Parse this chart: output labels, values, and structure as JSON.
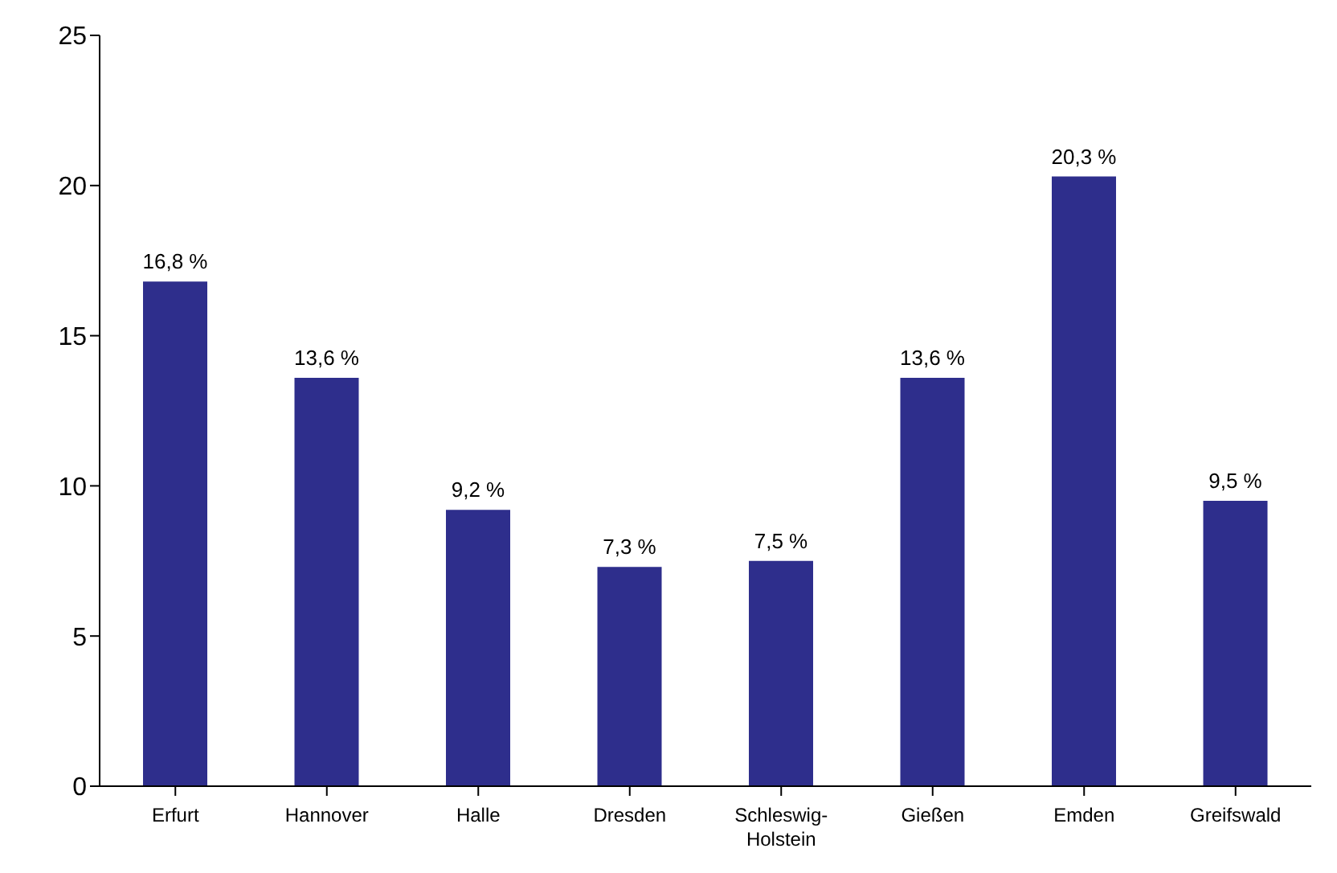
{
  "chart_data": {
    "type": "bar",
    "categories": [
      "Erfurt",
      "Hannover",
      "Halle",
      "Dresden",
      "Schleswig-Holstein",
      "Gießen",
      "Emden",
      "Greifswald"
    ],
    "values": [
      16.8,
      13.6,
      9.2,
      7.3,
      7.5,
      13.6,
      20.3,
      9.5
    ],
    "value_labels": [
      "16,8 %",
      "13,6 %",
      "9,2 %",
      "7,3 %",
      "7,5 %",
      "13,6 %",
      "20,3 %",
      "9,5 %"
    ],
    "color": "#2e2e8c",
    "ylim": [
      0,
      25
    ],
    "yticks": [
      0,
      5,
      10,
      15,
      20,
      25
    ],
    "grid": false,
    "legend": false
  }
}
